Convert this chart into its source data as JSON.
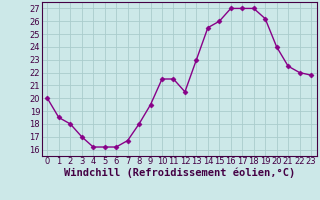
{
  "x": [
    0,
    1,
    2,
    3,
    4,
    5,
    6,
    7,
    8,
    9,
    10,
    11,
    12,
    13,
    14,
    15,
    16,
    17,
    18,
    19,
    20,
    21,
    22,
    23
  ],
  "y": [
    20,
    18.5,
    18,
    17,
    16.2,
    16.2,
    16.2,
    16.7,
    18,
    19.5,
    21.5,
    21.5,
    20.5,
    23,
    25.5,
    26,
    27,
    27,
    27,
    26.2,
    24,
    22.5,
    22,
    21.8
  ],
  "line_color": "#880088",
  "marker": "D",
  "marker_size": 2.5,
  "bg_color": "#cce8e8",
  "grid_color": "#aacccc",
  "xlabel": "Windchill (Refroidissement éolien,°C)",
  "xlabel_fontsize": 7.5,
  "xlim": [
    -0.5,
    23.5
  ],
  "ylim": [
    15.5,
    27.5
  ],
  "yticks": [
    16,
    17,
    18,
    19,
    20,
    21,
    22,
    23,
    24,
    25,
    26,
    27
  ],
  "xticks": [
    0,
    1,
    2,
    3,
    4,
    5,
    6,
    7,
    8,
    9,
    10,
    11,
    12,
    13,
    14,
    15,
    16,
    17,
    18,
    19,
    20,
    21,
    22,
    23
  ],
  "tick_label_size": 6,
  "line_width": 1.0,
  "spine_color": "#440044",
  "text_color": "#440044"
}
